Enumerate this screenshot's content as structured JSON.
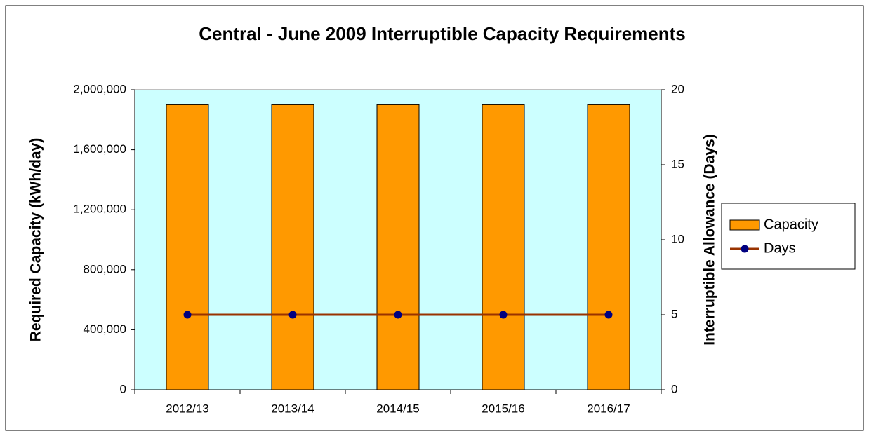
{
  "chart_data": {
    "type": "bar",
    "title": "Central - June 2009 Interruptible Capacity Requirements",
    "y_label": "Required Capacity (kWh/day)",
    "y2_label": "Interruptible Allowance (Days)",
    "categories": [
      "2012/13",
      "2013/14",
      "2014/15",
      "2015/16",
      "2016/17"
    ],
    "series": [
      {
        "name": "Capacity",
        "type": "bar",
        "axis": "y",
        "color": "#ff9900",
        "values": [
          1900000,
          1900000,
          1900000,
          1900000,
          1900000
        ]
      },
      {
        "name": "Days",
        "type": "line",
        "axis": "y2",
        "color": "#993300",
        "marker_color": "#000080",
        "values": [
          5,
          5,
          5,
          5,
          5
        ]
      }
    ],
    "ylim": [
      0,
      2000000
    ],
    "yticks": [
      0,
      {
        "value": 400000,
        "label": "400,000"
      },
      {
        "value": 800000,
        "label": "800,000"
      },
      {
        "value": 1200000,
        "label": "1,200,000"
      },
      {
        "value": 1600000,
        "label": "1,600,000"
      },
      {
        "value": 2000000,
        "label": "2,000,000"
      }
    ],
    "y2lim": [
      0,
      20
    ],
    "y2ticks": [
      0,
      5,
      10,
      15,
      20
    ],
    "grid": false,
    "legend": "right",
    "plot_background": "#ccffff"
  }
}
